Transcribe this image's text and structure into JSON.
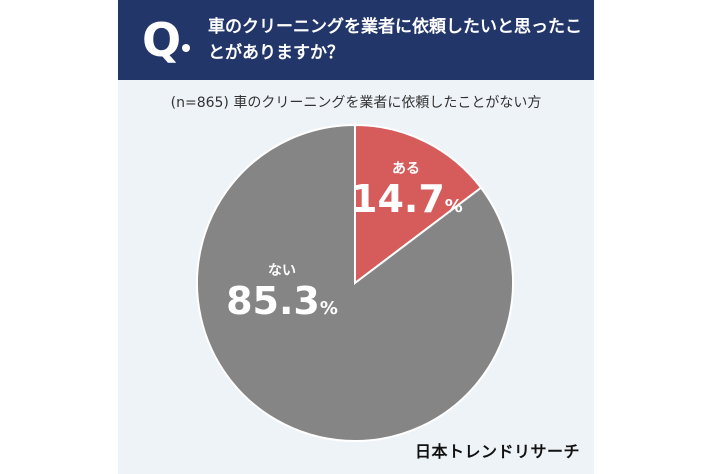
{
  "header": {
    "q_letter": "Q",
    "question": "車のクリーニングを業者に依頼したいと思ったことがありますか？"
  },
  "subtitle": "(n=865) 車のクリーニングを業者に依頼したことがない方",
  "brand": "日本トレンドリサーチ",
  "colors": {
    "header": "#22366a",
    "panel": "#eef3f8",
    "aru": "#d65c5c",
    "nai": "#858585"
  },
  "chart_data": {
    "type": "pie",
    "title": "",
    "slices": [
      {
        "label": "ある",
        "value": 14.7,
        "value_text": "14.7",
        "unit": "%",
        "color": "#d65c5c"
      },
      {
        "label": "ない",
        "value": 85.3,
        "value_text": "85.3",
        "unit": "%",
        "color": "#858585"
      }
    ]
  }
}
